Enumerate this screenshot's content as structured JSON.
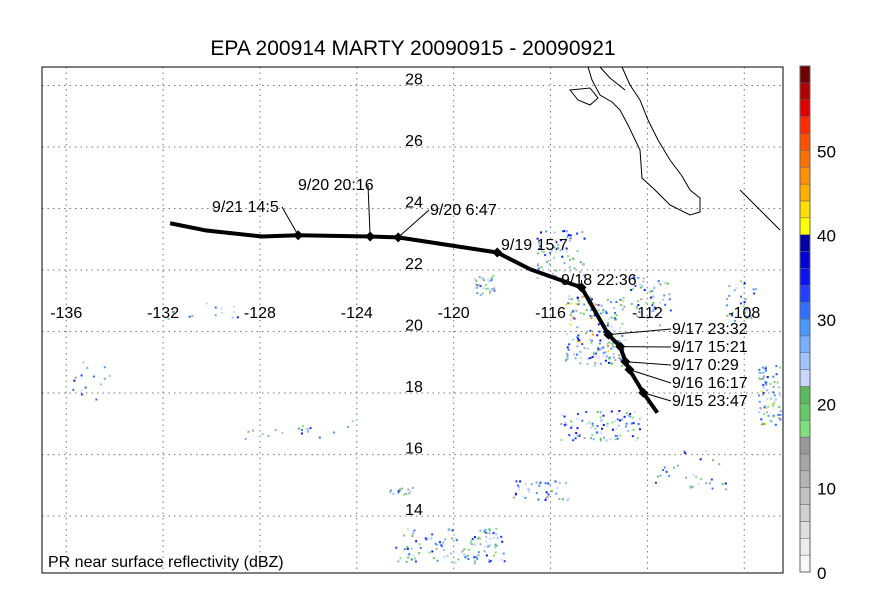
{
  "title": "EPA 200914 MARTY 20090915 - 20090921",
  "footer_label": "PR near surface reflectivity (dBZ)",
  "chart_data": {
    "type": "map",
    "title": "EPA 200914 MARTY 20090915 - 20090921",
    "lon_range": [
      -137.0,
      -106.4
    ],
    "lat_range": [
      12.15,
      28.6
    ],
    "lon_ticks": [
      -136,
      -132,
      -128,
      -124,
      -120,
      -116,
      -112,
      -108
    ],
    "lat_ticks": [
      28,
      26,
      24,
      22,
      20,
      18,
      16,
      14
    ],
    "lon_tick_labels": [
      "-136",
      "-132",
      "-128",
      "-124",
      "-120",
      "-116",
      "-112",
      "-108"
    ],
    "lat_tick_labels": [
      "28",
      "26",
      "24",
      "22",
      "20",
      "18",
      "16",
      "14"
    ],
    "grid": true,
    "track": [
      {
        "lon": -131.71,
        "lat": 23.52
      },
      {
        "lon": -130.26,
        "lat": 23.29
      },
      {
        "lon": -127.91,
        "lat": 23.09
      },
      {
        "lon": -126.42,
        "lat": 23.13
      },
      {
        "lon": -123.45,
        "lat": 23.09
      },
      {
        "lon": -122.29,
        "lat": 23.06
      },
      {
        "lon": -118.2,
        "lat": 22.57
      },
      {
        "lon": -116.83,
        "lat": 22.02
      },
      {
        "lon": -114.72,
        "lat": 21.43
      },
      {
        "lon": -113.61,
        "lat": 19.9
      },
      {
        "lon": -113.12,
        "lat": 19.51
      },
      {
        "lon": -112.91,
        "lat": 19.02
      },
      {
        "lon": -112.74,
        "lat": 18.76
      },
      {
        "lon": -112.17,
        "lat": 18.01
      },
      {
        "lon": -111.59,
        "lat": 17.36
      }
    ],
    "overpasses": [
      {
        "label": "9/21 14:5",
        "lon": -126.42,
        "lat": 23.13
      },
      {
        "label": "9/20 20:16",
        "lon": -123.45,
        "lat": 23.09
      },
      {
        "label": "9/20 6:47",
        "lon": -122.29,
        "lat": 23.06
      },
      {
        "label": "9/19 15:7",
        "lon": -118.2,
        "lat": 22.57
      },
      {
        "label": "9/18 22:36",
        "lon": -114.72,
        "lat": 21.43
      },
      {
        "label": "9/17 23:32",
        "lon": -113.61,
        "lat": 19.9
      },
      {
        "label": "9/17 15:21",
        "lon": -113.12,
        "lat": 19.51
      },
      {
        "label": "9/17 0:29",
        "lon": -112.91,
        "lat": 19.02
      },
      {
        "label": "9/16 16:17",
        "lon": -112.74,
        "lat": 18.76
      },
      {
        "label": "9/15 23:47",
        "lon": -112.17,
        "lat": 18.01
      }
    ],
    "colorbar": {
      "label": "PR near surface reflectivity (dBZ)",
      "range": [
        0,
        60
      ],
      "ticks": [
        0,
        10,
        20,
        30,
        40,
        50
      ],
      "tick_labels": [
        "0",
        "10",
        "20",
        "30",
        "40",
        "50"
      ],
      "colors": [
        "#f8f8f8",
        "#ececec",
        "#dedede",
        "#d0d0d0",
        "#c2c2c2",
        "#b4b4b4",
        "#a6a6a6",
        "#989898",
        "#80e080",
        "#66c866",
        "#5cb85c",
        "#c8d8ff",
        "#a0c4ff",
        "#78b0ff",
        "#4c98ff",
        "#3070ff",
        "#2040ff",
        "#0a14f0",
        "#0000d0",
        "#0000a8",
        "#ffff00",
        "#ffe000",
        "#ffb000",
        "#ff9000",
        "#ff7000",
        "#ff5000",
        "#ff2a00",
        "#e00000",
        "#b00000",
        "#700000"
      ]
    }
  }
}
